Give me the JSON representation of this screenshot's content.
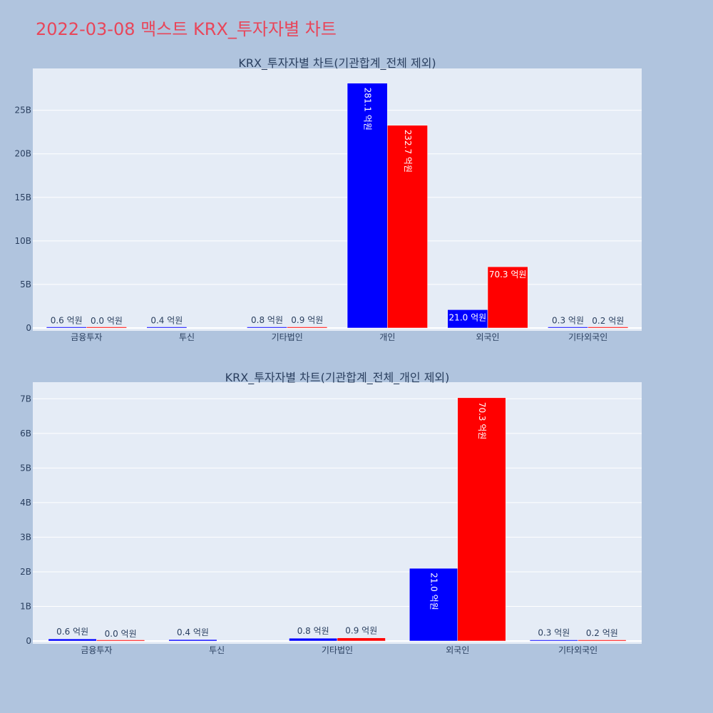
{
  "page_title": "2022-03-08 맥스트 KRX_투자자별 차트",
  "colors": {
    "background": "#b0c4de",
    "plot_bg": "#e5ecf6",
    "buy": "#0000ff",
    "sell": "#ff0000",
    "title": "#e8465a"
  },
  "chart_data": [
    {
      "type": "bar",
      "title": "KRX_투자자별 차트(기관합계_전체 제외)",
      "categories": [
        "금융투자",
        "투신",
        "기타법인",
        "개인",
        "외국인",
        "기타외국인"
      ],
      "y_ticks": [
        "0",
        "5B",
        "10B",
        "15B",
        "20B",
        "25B"
      ],
      "y_tick_values": [
        0,
        5000000000,
        10000000000,
        15000000000,
        20000000000,
        25000000000
      ],
      "ylim": [
        0,
        29800000000
      ],
      "grid": true,
      "series": [
        {
          "color": "#0000ff",
          "values": [
            60000000,
            40000000,
            80000000,
            28110000000,
            2100000000,
            30000000
          ],
          "labels": [
            "0.6 억원",
            "0.4 억원",
            "0.8 억원",
            "281.1 억원",
            "21.0 억원",
            "0.3 억원"
          ]
        },
        {
          "color": "#ff0000",
          "values": [
            0,
            0,
            90000000,
            23270000000,
            7030000000,
            20000000
          ],
          "labels": [
            "0.0 억원",
            "",
            "0.9 억원",
            "232.7 억원",
            "70.3 억원",
            "0.2 억원"
          ]
        }
      ]
    },
    {
      "type": "bar",
      "title": "KRX_투자자별 차트(기관합계_전체_개인 제외)",
      "categories": [
        "금융투자",
        "투신",
        "기타법인",
        "외국인",
        "기타외국인"
      ],
      "y_ticks": [
        "0",
        "1B",
        "2B",
        "3B",
        "4B",
        "5B",
        "6B",
        "7B"
      ],
      "y_tick_values": [
        0,
        1000000000,
        2000000000,
        3000000000,
        4000000000,
        5000000000,
        6000000000,
        7000000000
      ],
      "ylim": [
        0,
        7480000000
      ],
      "grid": true,
      "series": [
        {
          "color": "#0000ff",
          "values": [
            60000000,
            40000000,
            80000000,
            2100000000,
            30000000
          ],
          "labels": [
            "0.6 억원",
            "0.4 억원",
            "0.8 억원",
            "21.0 억원",
            "0.3 억원"
          ]
        },
        {
          "color": "#ff0000",
          "values": [
            0,
            0,
            90000000,
            7030000000,
            20000000
          ],
          "labels": [
            "0.0 억원",
            "",
            "0.9 억원",
            "70.3 억원",
            "0.2 억원"
          ]
        }
      ]
    }
  ]
}
